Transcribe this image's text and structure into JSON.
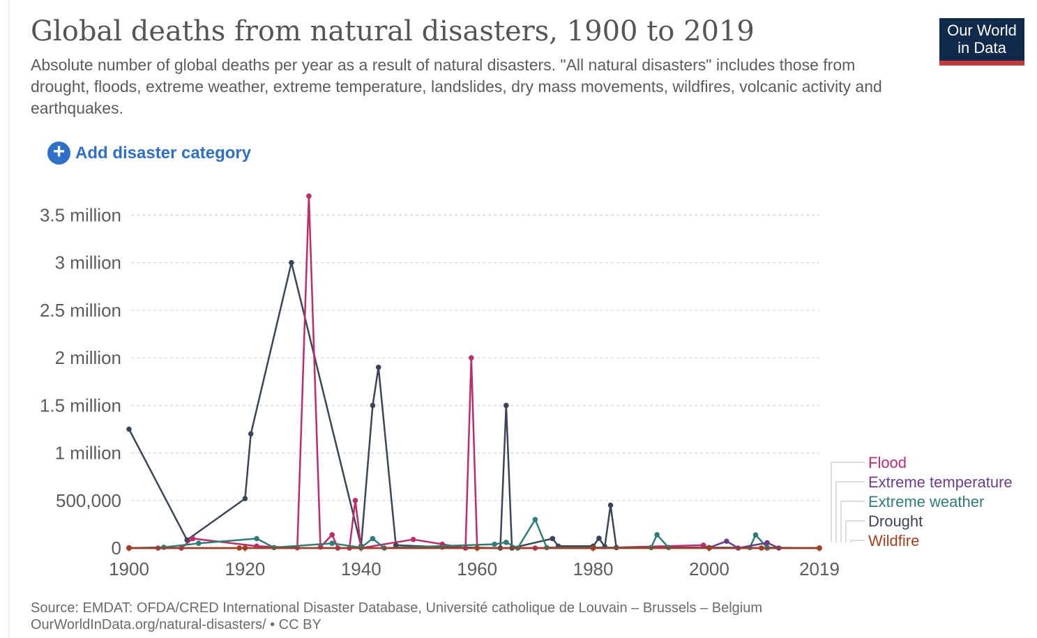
{
  "header": {
    "title": "Global deaths from natural disasters, 1900 to 2019",
    "subtitle": "Absolute number of global deaths per year as a result of natural disasters. \"All natural disasters\" includes those from drought, floods, extreme weather, extreme temperature, landslides, dry mass movements, wildfires, volcanic activity and earthquakes."
  },
  "logo": {
    "line1": "Our World",
    "line2": "in Data"
  },
  "controls": {
    "add_label": "Add disaster category",
    "add_icon": "plus-circle-icon"
  },
  "footer": {
    "source": "Source: EMDAT: OFDA/CRED International Disaster Database, Université catholique de Louvain – Brussels – Belgium",
    "license": "OurWorldInData.org/natural-disasters/ • CC BY"
  },
  "colors": {
    "flood": "#be2c6a",
    "extreme_temperature": "#6b3d8a",
    "extreme_weather": "#2f7d78",
    "drought": "#3a4658",
    "wildfire": "#a0401e",
    "grid": "#cccccc",
    "axis_text": "#5b5b5b",
    "link": "#2e6fc8",
    "logo_bg": "#0f2a4a",
    "logo_bar": "#c43a3a"
  },
  "chart_data": {
    "type": "line",
    "x_range": [
      1900,
      2019
    ],
    "ylim": [
      0,
      3800000
    ],
    "y_ticks": [
      {
        "v": 0,
        "label": "0"
      },
      {
        "v": 500000,
        "label": "500,000"
      },
      {
        "v": 1000000,
        "label": "1 million"
      },
      {
        "v": 1500000,
        "label": "1.5 million"
      },
      {
        "v": 2000000,
        "label": "2 million"
      },
      {
        "v": 2500000,
        "label": "2.5 million"
      },
      {
        "v": 3000000,
        "label": "3 million"
      },
      {
        "v": 3500000,
        "label": "3.5 million"
      }
    ],
    "x_ticks": [
      1900,
      1920,
      1940,
      1960,
      1980,
      2000,
      2019
    ],
    "grid": true,
    "legend_position": "right",
    "series": [
      {
        "name": "Drought",
        "color_key": "drought",
        "points": [
          [
            1900,
            1250000
          ],
          [
            1910,
            85000
          ],
          [
            1920,
            520000
          ],
          [
            1921,
            1200000
          ],
          [
            1928,
            3000000
          ],
          [
            1940,
            20000
          ],
          [
            1942,
            1500000
          ],
          [
            1943,
            1900000
          ],
          [
            1946,
            30000
          ],
          [
            1954,
            10000
          ],
          [
            1964,
            0
          ],
          [
            1965,
            1500000
          ],
          [
            1966,
            0
          ],
          [
            1973,
            100000
          ],
          [
            1974,
            20000
          ],
          [
            1980,
            20000
          ],
          [
            1981,
            103000
          ],
          [
            1982,
            15000
          ],
          [
            1983,
            450000
          ],
          [
            1984,
            5000
          ],
          [
            2000,
            1000
          ],
          [
            2010,
            0
          ],
          [
            2019,
            0
          ]
        ]
      },
      {
        "name": "Flood",
        "color_key": "flood",
        "points": [
          [
            1900,
            3000
          ],
          [
            1905,
            0
          ],
          [
            1909,
            0
          ],
          [
            1911,
            100000
          ],
          [
            1922,
            20000
          ],
          [
            1929,
            3000
          ],
          [
            1931,
            3700000
          ],
          [
            1933,
            10000
          ],
          [
            1935,
            140000
          ],
          [
            1936,
            0
          ],
          [
            1938,
            0
          ],
          [
            1939,
            500000
          ],
          [
            1940,
            0
          ],
          [
            1949,
            90000
          ],
          [
            1954,
            40000
          ],
          [
            1958,
            0
          ],
          [
            1959,
            2000000
          ],
          [
            1960,
            0
          ],
          [
            1970,
            0
          ],
          [
            1980,
            0
          ],
          [
            1999,
            30000
          ],
          [
            2000,
            0
          ],
          [
            2010,
            0
          ],
          [
            2019,
            0
          ]
        ]
      },
      {
        "name": "Extreme weather",
        "color_key": "extreme_weather",
        "points": [
          [
            1900,
            0
          ],
          [
            1906,
            8000
          ],
          [
            1912,
            50000
          ],
          [
            1922,
            100000
          ],
          [
            1925,
            5000
          ],
          [
            1935,
            50000
          ],
          [
            1940,
            5000
          ],
          [
            1942,
            100000
          ],
          [
            1944,
            0
          ],
          [
            1963,
            40000
          ],
          [
            1965,
            60000
          ],
          [
            1967,
            0
          ],
          [
            1970,
            300000
          ],
          [
            1972,
            5000
          ],
          [
            1990,
            5000
          ],
          [
            1991,
            140000
          ],
          [
            1993,
            5000
          ],
          [
            2007,
            5000
          ],
          [
            2008,
            138000
          ],
          [
            2010,
            5000
          ],
          [
            2019,
            0
          ]
        ]
      },
      {
        "name": "Extreme temperature",
        "color_key": "extreme_temperature",
        "points": [
          [
            1900,
            0
          ],
          [
            1980,
            0
          ],
          [
            2000,
            5000
          ],
          [
            2003,
            72000
          ],
          [
            2005,
            0
          ],
          [
            2010,
            56000
          ],
          [
            2012,
            0
          ],
          [
            2019,
            0
          ]
        ]
      },
      {
        "name": "Wildfire",
        "color_key": "wildfire",
        "points": [
          [
            1900,
            0
          ],
          [
            1919,
            0
          ],
          [
            1920,
            500
          ],
          [
            1960,
            0
          ],
          [
            1980,
            0
          ],
          [
            2000,
            100
          ],
          [
            2009,
            200
          ],
          [
            2019,
            0
          ]
        ]
      }
    ],
    "legend": [
      {
        "name": "Flood",
        "color_key": "flood"
      },
      {
        "name": "Extreme temperature",
        "color_key": "extreme_temperature"
      },
      {
        "name": "Extreme weather",
        "color_key": "extreme_weather"
      },
      {
        "name": "Drought",
        "color_key": "drought"
      },
      {
        "name": "Wildfire",
        "color_key": "wildfire"
      }
    ]
  }
}
